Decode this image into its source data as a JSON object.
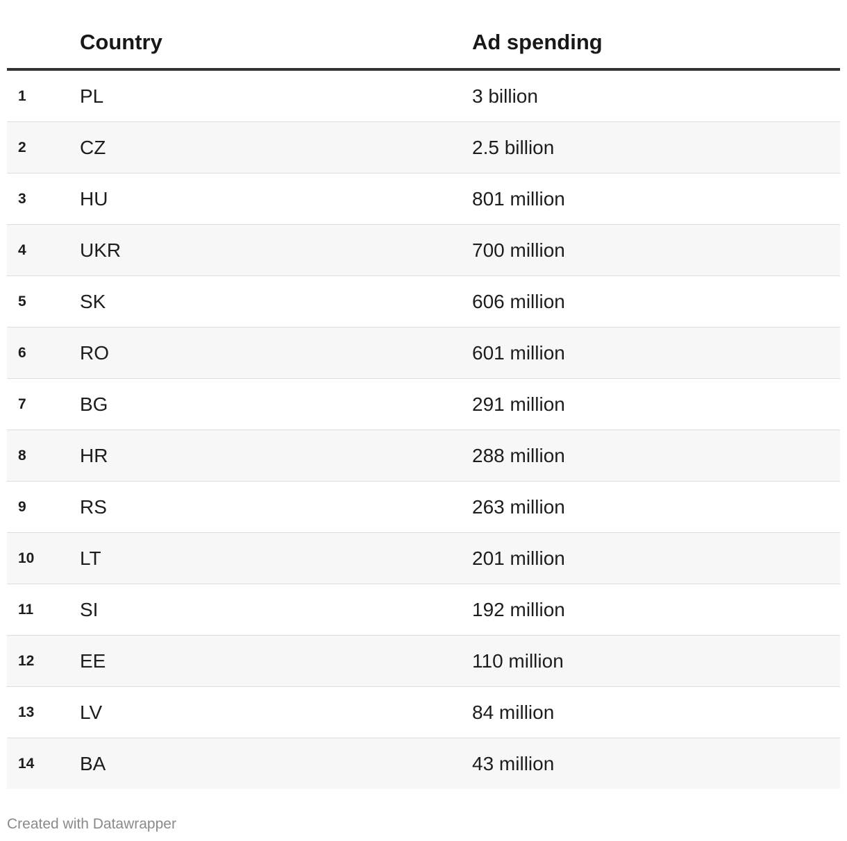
{
  "chart_data": {
    "type": "table",
    "columns": [
      "",
      "Country",
      "Ad spending"
    ],
    "rows": [
      {
        "rank": "1",
        "country": "PL",
        "ad_spending": "3 billion"
      },
      {
        "rank": "2",
        "country": "CZ",
        "ad_spending": "2.5 billion"
      },
      {
        "rank": "3",
        "country": "HU",
        "ad_spending": "801 million"
      },
      {
        "rank": "4",
        "country": "UKR",
        "ad_spending": "700 million"
      },
      {
        "rank": "5",
        "country": "SK",
        "ad_spending": "606 million"
      },
      {
        "rank": "6",
        "country": "RO",
        "ad_spending": "601 million"
      },
      {
        "rank": "7",
        "country": "BG",
        "ad_spending": "291 million"
      },
      {
        "rank": "8",
        "country": "HR",
        "ad_spending": "288 million"
      },
      {
        "rank": "9",
        "country": "RS",
        "ad_spending": "263 million"
      },
      {
        "rank": "10",
        "country": "LT",
        "ad_spending": "201 million"
      },
      {
        "rank": "11",
        "country": "SI",
        "ad_spending": "192 million"
      },
      {
        "rank": "12",
        "country": "EE",
        "ad_spending": "110 million"
      },
      {
        "rank": "13",
        "country": "LV",
        "ad_spending": "84 million"
      },
      {
        "rank": "14",
        "country": "BA",
        "ad_spending": "43 million"
      }
    ]
  },
  "footer": {
    "credit": "Created with Datawrapper"
  },
  "colors": {
    "header_rule": "#333333",
    "row_alt_bg": "#f7f7f7",
    "row_divider": "#dddddd",
    "footer_text": "#8a8a8a"
  }
}
